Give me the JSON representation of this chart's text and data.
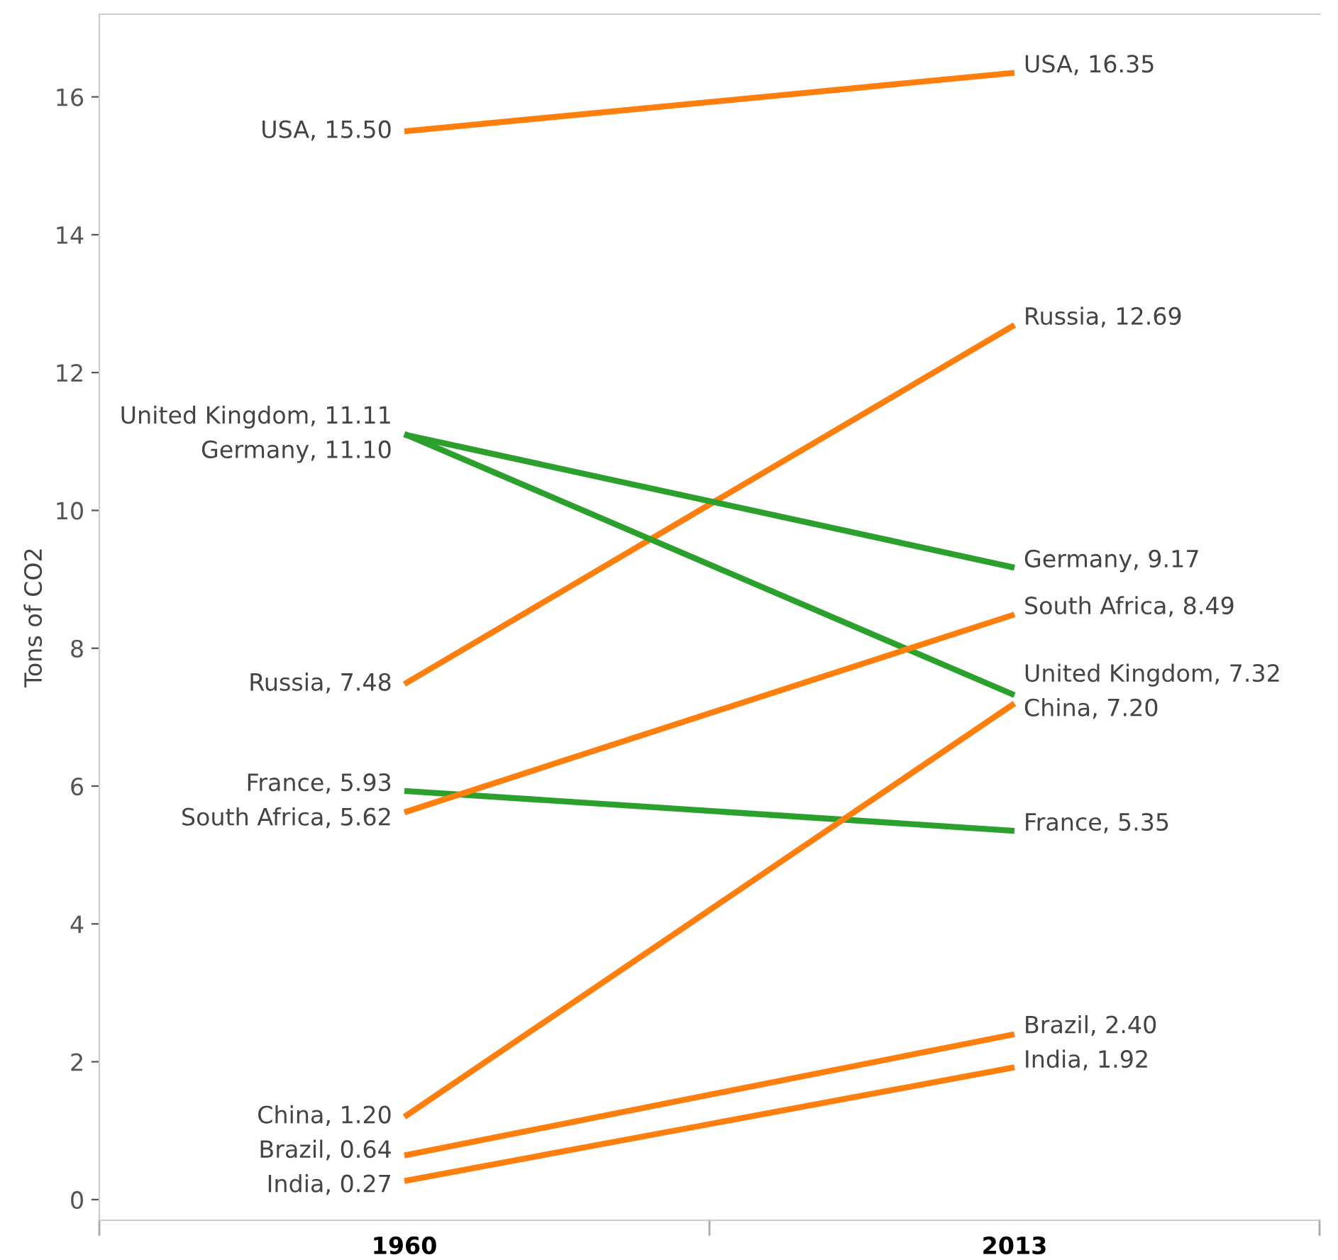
{
  "chart_data": {
    "type": "line",
    "categories": [
      "1960",
      "2013"
    ],
    "ylabel": "Tons of CO2",
    "ylim": [
      -0.3,
      17.2
    ],
    "yticks": [
      0,
      2,
      4,
      6,
      8,
      10,
      12,
      14,
      16
    ],
    "grid": false,
    "legend": false,
    "marker": "none",
    "line_style": "solid",
    "series": [
      {
        "color": "#ff7f0e",
        "values": [
          15.5,
          16.35
        ],
        "value_labels": [
          "USA, 15.50",
          "USA, 16.35"
        ]
      },
      {
        "color": "#ff7f0e",
        "values": [
          7.48,
          12.69
        ],
        "value_labels": [
          "Russia, 7.48",
          "Russia, 12.69"
        ]
      },
      {
        "color": "#2ca02c",
        "values": [
          11.11,
          7.32
        ],
        "value_labels": [
          "United Kingdom, 11.11",
          "United Kingdom, 7.32"
        ]
      },
      {
        "color": "#2ca02c",
        "values": [
          11.1,
          9.17
        ],
        "value_labels": [
          "Germany, 11.10",
          "Germany, 9.17"
        ]
      },
      {
        "color": "#2ca02c",
        "values": [
          5.93,
          5.35
        ],
        "value_labels": [
          "France, 5.93",
          "France, 5.35"
        ]
      },
      {
        "color": "#ff7f0e",
        "values": [
          5.62,
          8.49
        ],
        "value_labels": [
          "South Africa, 5.62",
          "South Africa, 8.49"
        ]
      },
      {
        "color": "#ff7f0e",
        "values": [
          1.2,
          7.2
        ],
        "value_labels": [
          "China, 1.20",
          "China, 7.20"
        ]
      },
      {
        "color": "#ff7f0e",
        "values": [
          0.64,
          2.4
        ],
        "value_labels": [
          "Brazil, 0.64",
          "Brazil, 2.40"
        ]
      },
      {
        "color": "#ff7f0e",
        "values": [
          0.27,
          1.92
        ],
        "value_labels": [
          "India, 0.27",
          "India, 1.92"
        ]
      }
    ]
  }
}
